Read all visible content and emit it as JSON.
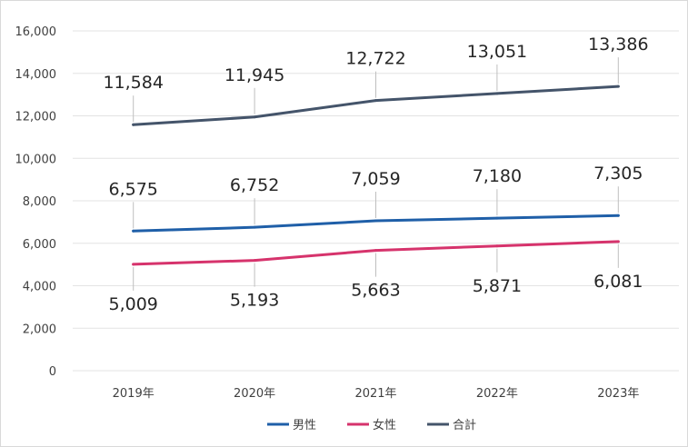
{
  "chart_data": {
    "type": "line",
    "title": "",
    "xlabel": "",
    "ylabel": "",
    "categories": [
      "2019年",
      "2020年",
      "2021年",
      "2022年",
      "2023年"
    ],
    "ylim": [
      0,
      16000
    ],
    "yticks": [
      0,
      2000,
      4000,
      6000,
      8000,
      10000,
      12000,
      14000,
      16000
    ],
    "ytick_labels": [
      "0",
      "2,000",
      "4,000",
      "6,000",
      "8,000",
      "10,000",
      "12,000",
      "14,000",
      "16,000"
    ],
    "grid": true,
    "legend_position": "bottom",
    "series": [
      {
        "name": "男性",
        "color": "#1f5fa8",
        "values": [
          6575,
          6752,
          7059,
          7180,
          7305
        ],
        "labels": [
          "6,575",
          "6,752",
          "7,059",
          "7,180",
          "7,305"
        ],
        "label_side": "above"
      },
      {
        "name": "女性",
        "color": "#d6336c",
        "values": [
          5009,
          5193,
          5663,
          5871,
          6081
        ],
        "labels": [
          "5,009",
          "5,193",
          "5,663",
          "5,871",
          "6,081"
        ],
        "label_side": "below"
      },
      {
        "name": "合計",
        "color": "#44546a",
        "values": [
          11584,
          11945,
          12722,
          13051,
          13386
        ],
        "labels": [
          "11,584",
          "11,945",
          "12,722",
          "13,051",
          "13,386"
        ],
        "label_side": "above"
      }
    ]
  }
}
